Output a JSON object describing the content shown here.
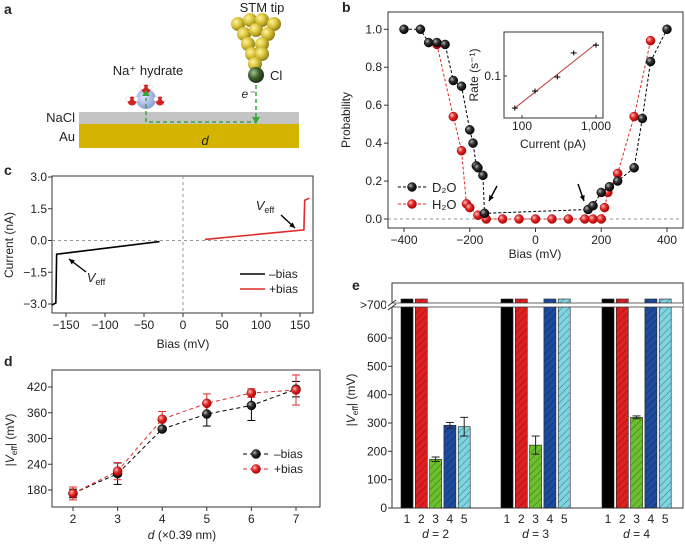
{
  "panel_letters": [
    "a",
    "b",
    "c",
    "d",
    "e"
  ],
  "panel_a": {
    "stm_tip": "STM tip",
    "cl": "Cl",
    "na_hydrate": "Na⁺ hydrate",
    "electron": "e⁻",
    "nacl": "NaCl",
    "au": "Au",
    "distance": "d",
    "colors": {
      "nacl": "#c4c4c4",
      "au": "#d4b400",
      "path": "#3aa63a",
      "tip": "#d8c23a",
      "cl": "#3d5e2e",
      "na": "#9aaee0"
    }
  },
  "chart_data": [
    {
      "id": "b",
      "type": "scatter-line",
      "xlabel": "Bias (mV)",
      "ylabel": "Probability",
      "xlim": [
        -400,
        400
      ],
      "ylim": [
        0,
        1.0
      ],
      "xticks": [
        -400,
        -200,
        0,
        200,
        400
      ],
      "yticks": [
        "0.0",
        "0.2",
        "0.4",
        "0.6",
        "0.8",
        "1.0"
      ],
      "legend_position": "bottom-left",
      "series": [
        {
          "name": "D₂O",
          "color": "#000000",
          "x": [
            -400,
            -350,
            -325,
            -300,
            -275,
            -250,
            -225,
            -200,
            -190,
            -180,
            -175,
            -160,
            -155,
            160,
            175,
            200,
            225,
            250,
            300,
            325,
            350,
            400
          ],
          "y": [
            1.0,
            1.0,
            0.93,
            0.93,
            0.92,
            0.73,
            0.7,
            0.47,
            0.4,
            0.28,
            0.27,
            0.23,
            0.03,
            0.05,
            0.07,
            0.14,
            0.17,
            0.2,
            0.27,
            0.53,
            0.83,
            1.0
          ]
        },
        {
          "name": "H₂O",
          "color": "#e02a2a",
          "x": [
            -300,
            -250,
            -225,
            -210,
            -200,
            -175,
            -150,
            -100,
            -50,
            0,
            50,
            100,
            150,
            175,
            200,
            210,
            220,
            250,
            300,
            350
          ],
          "y": [
            0.92,
            0.54,
            0.36,
            0.08,
            0.06,
            0.02,
            0,
            0,
            0,
            0,
            0,
            0,
            0,
            0,
            0,
            0.06,
            0.14,
            0.24,
            0.54,
            0.94
          ]
        }
      ],
      "annotations": [
        "arrow at -150 mV",
        "arrow at 150 mV"
      ],
      "inset": {
        "type": "scatter-line",
        "xscale": "log",
        "yscale": "log",
        "xlabel": "Current (pA)",
        "ylabel": "Rate (s⁻¹)",
        "xticks": [
          "100",
          "1,000"
        ],
        "yticks": [
          "0.1"
        ],
        "x": [
          80,
          150,
          300,
          500,
          1000
        ],
        "y": [
          0.028,
          0.055,
          0.096,
          0.25,
          0.34
        ],
        "fit_color": "#c0393b"
      }
    },
    {
      "id": "c",
      "type": "line",
      "xlabel": "Bias (mV)",
      "ylabel": "Current (nA)",
      "xlim": [
        -175,
        175
      ],
      "ylim": [
        -3.3,
        3.0
      ],
      "xticks": [
        "-150",
        "-100",
        "-50",
        "0",
        "50",
        "100",
        "150"
      ],
      "yticks": [
        "3.0",
        "1.5",
        "0.0",
        "-1.5",
        "-3.0"
      ],
      "legend_position": "bottom-right",
      "veff_label": {
        "main": "V",
        "sub": "eff"
      },
      "series": [
        {
          "name": "–bias",
          "color": "#000000",
          "x": [
            -168,
            -163,
            -162,
            -30
          ],
          "y": [
            -3.05,
            -2.95,
            -0.65,
            -0.05
          ]
        },
        {
          "name": "+bias",
          "color": "#e02a2a",
          "x": [
            28,
            155,
            156,
            162
          ],
          "y": [
            0.05,
            0.5,
            1.9,
            2.0
          ]
        }
      ]
    },
    {
      "id": "d",
      "type": "scatter-line",
      "xlabel": "d (×0.39 nm)",
      "xlabel_var": "d",
      "xlabel_rest": " (×0.39 nm)",
      "ylabel": "|Veff| (mV)",
      "ylabel_parts": {
        "pre": "|",
        "main": "V",
        "sub": "eff",
        "post": "| (mV)"
      },
      "xlim": [
        2,
        7
      ],
      "ylim": [
        150,
        450
      ],
      "xticks": [
        "2",
        "3",
        "4",
        "5",
        "6",
        "7"
      ],
      "yticks": [
        "180",
        "240",
        "300",
        "360",
        "420"
      ],
      "legend_position": "center-right",
      "series": [
        {
          "name": "–bias",
          "color": "#000000",
          "x": [
            2,
            3,
            4,
            5,
            6,
            7
          ],
          "y": [
            172,
            218,
            322,
            357,
            377,
            415
          ],
          "err": [
            10,
            25,
            5,
            28,
            35,
            18
          ]
        },
        {
          "name": "+bias",
          "color": "#e02a2a",
          "x": [
            2,
            3,
            4,
            5,
            6,
            7
          ],
          "y": [
            172,
            224,
            345,
            382,
            406,
            413
          ],
          "err": [
            15,
            20,
            18,
            22,
            10,
            35
          ]
        }
      ]
    },
    {
      "id": "e",
      "type": "bar",
      "ylabel": "|Veff| (mV)",
      "ylabel_parts": {
        "pre": "|",
        "main": "V",
        "sub": "eff",
        "post": "| (mV)"
      },
      "ylim": [
        0,
        700
      ],
      "yticks": [
        "0",
        "100",
        "200",
        "300",
        "400",
        "500",
        "600"
      ],
      "ybreak_label": ">700",
      "categories": [
        "1",
        "2",
        "3",
        "4",
        "5"
      ],
      "colors": [
        "#000000",
        "#e02020",
        "#6cbf2e",
        "#1d4b9e",
        "#7fd4e2"
      ],
      "groups": [
        {
          "label_var": "d",
          "label_rest": " = 2",
          "values": [
            ">700",
            ">700",
            172,
            292,
            287
          ],
          "err": [
            0,
            0,
            8,
            10,
            33
          ]
        },
        {
          "label_var": "d",
          "label_rest": " = 3",
          "values": [
            ">700",
            ">700",
            222,
            ">700",
            ">700"
          ],
          "err": [
            0,
            0,
            32,
            0,
            0
          ]
        },
        {
          "label_var": "d",
          "label_rest": " = 4",
          "values": [
            ">700",
            ">700",
            320,
            ">700",
            ">700"
          ],
          "err": [
            0,
            0,
            5,
            0,
            0
          ]
        }
      ]
    }
  ]
}
